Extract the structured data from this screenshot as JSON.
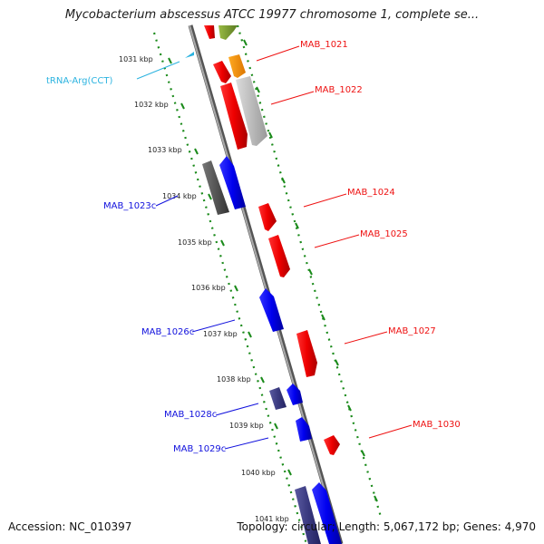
{
  "title": "Mycobacterium abscessus ATCC 19977 chromosome 1, complete se...",
  "footer": {
    "accession": "Accession: NC_010397",
    "summary": "Topology: circular; Length: 5,067,172 bp; Genes: 4,970"
  },
  "colors": {
    "forward_gene": "#ee1111",
    "reverse_gene": "#1111dd",
    "pseudo_forward": "#bbbbbb",
    "pseudo_reverse": "#555555",
    "rna": "#ee8800",
    "other": "#7a9a33",
    "trna_label": "#2bb3e0",
    "tick": "#1a8a1a",
    "backbone": "#888888"
  },
  "ticks": [
    {
      "kbp": 1031,
      "label": "1031 kbp"
    },
    {
      "kbp": 1032,
      "label": "1032 kbp"
    },
    {
      "kbp": 1033,
      "label": "1033 kbp"
    },
    {
      "kbp": 1034,
      "label": "1034 kbp"
    },
    {
      "kbp": 1035,
      "label": "1035 kbp"
    },
    {
      "kbp": 1036,
      "label": "1036 kbp"
    },
    {
      "kbp": 1037,
      "label": "1037 kbp"
    },
    {
      "kbp": 1038,
      "label": "1038 kbp"
    },
    {
      "kbp": 1039,
      "label": "1039 kbp"
    },
    {
      "kbp": 1040,
      "label": "1040 kbp"
    },
    {
      "kbp": 1041,
      "label": "1041 kbp"
    }
  ],
  "gene_labels": [
    {
      "name": "tRNA-Arg(CCT)",
      "strand": "trna"
    },
    {
      "name": "MAB_1021",
      "strand": "+"
    },
    {
      "name": "MAB_1022",
      "strand": "+"
    },
    {
      "name": "MAB_1023c",
      "strand": "-"
    },
    {
      "name": "MAB_1024",
      "strand": "+"
    },
    {
      "name": "MAB_1025",
      "strand": "+"
    },
    {
      "name": "MAB_1026c",
      "strand": "-"
    },
    {
      "name": "MAB_1027",
      "strand": "+"
    },
    {
      "name": "MAB_1028c",
      "strand": "-"
    },
    {
      "name": "MAB_1029c",
      "strand": "-"
    },
    {
      "name": "MAB_1030",
      "strand": "+"
    }
  ]
}
